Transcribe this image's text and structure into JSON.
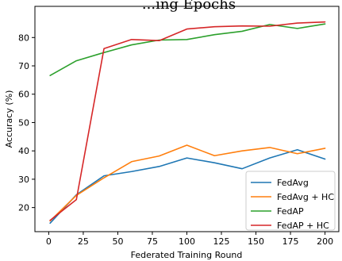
{
  "chart_data": {
    "type": "line",
    "title": "...ing Epochs",
    "xlabel": "Federated Training Round",
    "ylabel": "Accuracy (%)",
    "xlim": [
      -10,
      210
    ],
    "ylim": [
      11.5,
      91
    ],
    "xticks": [
      0,
      25,
      50,
      75,
      100,
      125,
      150,
      175,
      200
    ],
    "yticks": [
      20,
      30,
      40,
      50,
      60,
      70,
      80
    ],
    "grid": false,
    "legend_position": "lower-right",
    "x": [
      1,
      20,
      40,
      60,
      80,
      100,
      120,
      140,
      160,
      180,
      200
    ],
    "series": [
      {
        "name": "FedAvg",
        "color": "#1f77b4",
        "values": [
          14.5,
          24.5,
          31.2,
          32.7,
          34.5,
          37.5,
          35.8,
          33.7,
          37.5,
          40.4,
          37.1
        ]
      },
      {
        "name": "FedAvg + HC",
        "color": "#ff7f0e",
        "values": [
          15.3,
          24.3,
          30.5,
          36.2,
          38.2,
          42.0,
          38.3,
          40.0,
          41.2,
          39.0,
          40.9
        ]
      },
      {
        "name": "FedAP",
        "color": "#2ca02c",
        "values": [
          66.6,
          71.8,
          74.7,
          77.4,
          79.1,
          79.3,
          81.0,
          82.2,
          84.6,
          83.2,
          84.8
        ]
      },
      {
        "name": "FedAP + HC",
        "color": "#d62728",
        "values": [
          15.5,
          22.8,
          76.1,
          79.3,
          78.9,
          83.0,
          83.8,
          84.1,
          84.0,
          85.1,
          85.5
        ]
      }
    ]
  }
}
